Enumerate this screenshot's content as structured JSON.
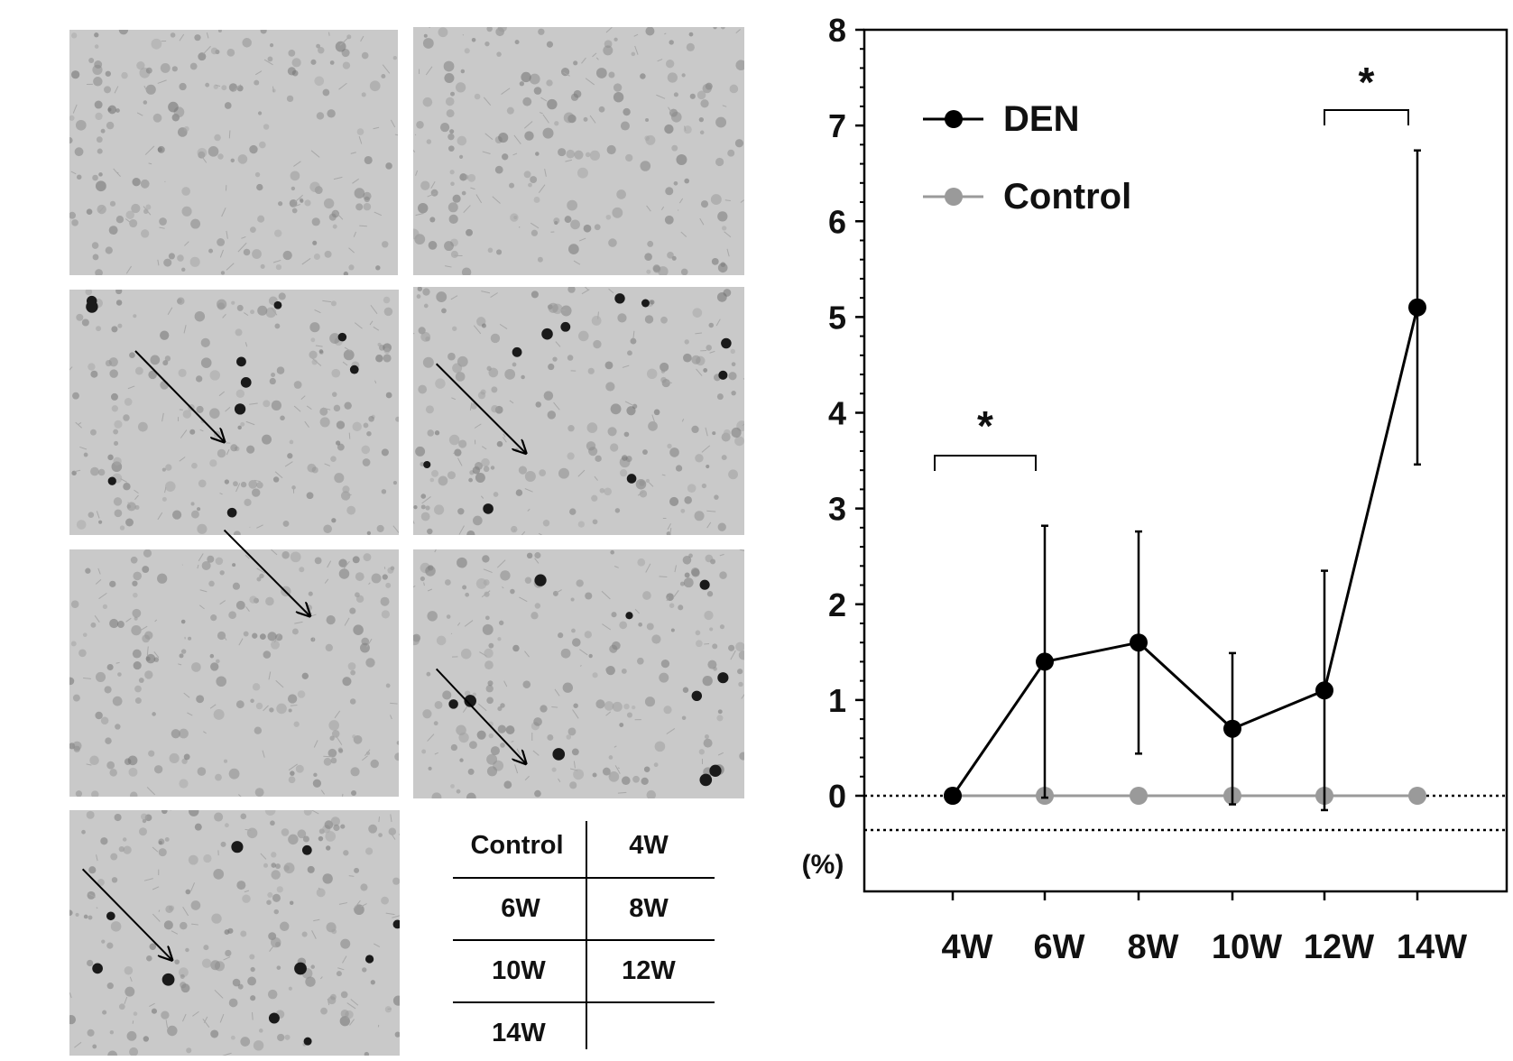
{
  "panels": [
    {
      "label": "Control",
      "arrows": []
    },
    {
      "label": "4W",
      "arrows": []
    },
    {
      "label": "6W",
      "arrows": [
        [
          0.2,
          0.25,
          0.47,
          0.62
        ],
        [
          0.47,
          0.98,
          0.73,
          1.33
        ]
      ]
    },
    {
      "label": "8W",
      "arrows": [
        [
          0.07,
          0.31,
          0.34,
          0.67
        ]
      ]
    },
    {
      "label": "10W",
      "arrows": []
    },
    {
      "label": "12W",
      "arrows": [
        [
          0.07,
          0.48,
          0.34,
          0.86
        ]
      ]
    },
    {
      "label": "14W",
      "arrows": [
        [
          0.04,
          0.24,
          0.31,
          0.61
        ]
      ]
    }
  ],
  "table": {
    "rows": [
      [
        "Control",
        "4W"
      ],
      [
        "6W",
        "8W"
      ],
      [
        "10W",
        "12W"
      ],
      [
        "14W",
        ""
      ]
    ]
  },
  "chart_data": {
    "type": "line",
    "categories": [
      "4W",
      "6W",
      "8W",
      "10W",
      "12W",
      "14W"
    ],
    "series": [
      {
        "name": "DEN",
        "values": [
          0,
          1.4,
          1.6,
          0.7,
          1.1,
          5.1
        ],
        "error": [
          0,
          1.42,
          1.16,
          0.79,
          1.25,
          1.64
        ],
        "color": "#000000"
      },
      {
        "name": "Control",
        "values": [
          0,
          0,
          0,
          0,
          0,
          0
        ],
        "color": "#9a9a9a"
      }
    ],
    "ylabel": "(%)",
    "ylim": [
      0,
      8
    ],
    "yticks": [
      "0",
      "1",
      "2",
      "3",
      "4",
      "5",
      "6",
      "7",
      "8"
    ],
    "significance": [
      {
        "from": "4W",
        "to": "6W",
        "label": "*"
      },
      {
        "from": "12W",
        "to": "14W",
        "label": "*"
      }
    ],
    "legend_position": "top-left"
  }
}
